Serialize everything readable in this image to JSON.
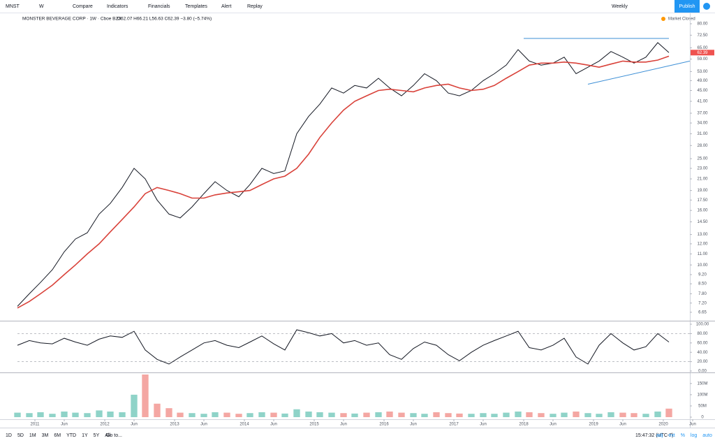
{
  "toolbar": {
    "symbol": "MNST",
    "interval": "W",
    "items": [
      "Compare",
      "Indicators",
      "Financials",
      "Templates",
      "Alert",
      "Replay"
    ],
    "range": "Weekly",
    "publish": "Publish"
  },
  "legend": {
    "title": "MONSTER BEVERAGE CORP · 1W · Cboe BZX",
    "ohlc": "O62.07 H66.21 L56.63 C62.39 −3.80 (−5.74%)",
    "status": "Market Closed"
  },
  "chart_data": [
    {
      "type": "line",
      "log": true,
      "ylim": [
        6.22,
        88.1
      ],
      "yticks": [
        {
          "value": 80,
          "label": "80.00"
        },
        {
          "value": 72.5,
          "label": "72.50"
        },
        {
          "value": 65,
          "label": "65.00"
        },
        {
          "value": 59,
          "label": "59.00"
        },
        {
          "value": 53,
          "label": "53.00"
        },
        {
          "value": 49,
          "label": "49.00"
        },
        {
          "value": 45,
          "label": "45.00"
        },
        {
          "value": 41,
          "label": "41.00"
        },
        {
          "value": 37,
          "label": "37.00"
        },
        {
          "value": 34,
          "label": "34.00"
        },
        {
          "value": 31,
          "label": "31.00"
        },
        {
          "value": 28,
          "label": "28.00"
        },
        {
          "value": 25,
          "label": "25.00"
        },
        {
          "value": 23,
          "label": "23.00"
        },
        {
          "value": 21,
          "label": "21.00"
        },
        {
          "value": 19,
          "label": "19.00"
        },
        {
          "value": 17.5,
          "label": "17.50"
        },
        {
          "value": 16,
          "label": "16.00"
        },
        {
          "value": 14.5,
          "label": "14.50"
        },
        {
          "value": 13,
          "label": "13.00"
        },
        {
          "value": 12,
          "label": "12.00"
        },
        {
          "value": 11,
          "label": "11.00"
        },
        {
          "value": 10,
          "label": "10.00"
        },
        {
          "value": 9.2,
          "label": "9.20"
        },
        {
          "value": 8.5,
          "label": "8.50"
        },
        {
          "value": 7.8,
          "label": "7.80"
        },
        {
          "value": 7.2,
          "label": "7.20"
        },
        {
          "value": 6.65,
          "label": "6.65"
        }
      ],
      "xlim": [
        2010.75,
        2020.38
      ],
      "xticks": [
        2011,
        {
          "value": 2011.42,
          "label": "Jun"
        },
        2012,
        {
          "value": 2012.42,
          "label": "Jun"
        },
        2013,
        {
          "value": 2013.42,
          "label": "Jun"
        },
        2014,
        {
          "value": 2014.42,
          "label": "Jun"
        },
        2015,
        {
          "value": 2015.42,
          "label": "Jun"
        },
        2016,
        {
          "value": 2016.42,
          "label": "Jun"
        },
        2017,
        {
          "value": 2017.42,
          "label": "Jun"
        },
        2018,
        {
          "value": 2018.42,
          "label": "Jun"
        },
        2019,
        {
          "value": 2019.42,
          "label": "Jun"
        },
        2020,
        {
          "value": 2020.42,
          "label": "Jun"
        }
      ],
      "x": [
        2010.75,
        2010.92,
        2011.08,
        2011.25,
        2011.42,
        2011.58,
        2011.75,
        2011.92,
        2012.08,
        2012.25,
        2012.42,
        2012.58,
        2012.75,
        2012.92,
        2013.08,
        2013.25,
        2013.42,
        2013.58,
        2013.75,
        2013.92,
        2014.08,
        2014.25,
        2014.42,
        2014.58,
        2014.75,
        2014.92,
        2015.08,
        2015.25,
        2015.42,
        2015.58,
        2015.75,
        2015.92,
        2016.08,
        2016.25,
        2016.42,
        2016.58,
        2016.75,
        2016.92,
        2017.08,
        2017.25,
        2017.42,
        2017.58,
        2017.75,
        2017.92,
        2018.08,
        2018.25,
        2018.42,
        2018.58,
        2018.75,
        2018.92,
        2019.08,
        2019.25,
        2019.42,
        2019.58,
        2019.75,
        2019.92,
        2020.08
      ],
      "series": [
        {
          "color": "#131722",
          "width": 1,
          "values": [
            7.0,
            7.8,
            8.6,
            9.6,
            11.2,
            12.5,
            13.2,
            15.5,
            17.0,
            19.5,
            23.0,
            21.0,
            17.5,
            15.5,
            15.0,
            16.5,
            18.5,
            20.5,
            19.0,
            18.0,
            20.0,
            23.0,
            22.0,
            22.5,
            31.0,
            36.0,
            40.0,
            46.0,
            44.0,
            47.0,
            46.0,
            50.0,
            46.0,
            43.0,
            47.0,
            52.0,
            49.0,
            44.0,
            43.0,
            45.0,
            49.0,
            52.0,
            56.0,
            64.0,
            58.0,
            56.0,
            57.0,
            60.0,
            52.0,
            55.0,
            58.0,
            63.0,
            60.0,
            57.0,
            60.0,
            68.0,
            62.39
          ]
        },
        {
          "color": "#d9423a",
          "width": 1.6,
          "values": [
            6.9,
            7.3,
            7.8,
            8.4,
            9.2,
            10.0,
            11.0,
            12.0,
            13.3,
            14.8,
            16.5,
            18.5,
            19.5,
            19.0,
            18.5,
            17.8,
            17.8,
            18.3,
            18.6,
            18.8,
            19.0,
            20.0,
            21.0,
            21.5,
            23.0,
            26.0,
            30.0,
            34.0,
            38.0,
            41.0,
            43.0,
            45.0,
            45.5,
            45.0,
            44.5,
            46.0,
            47.0,
            47.5,
            46.0,
            45.0,
            45.5,
            47.0,
            50.0,
            53.0,
            56.0,
            57.0,
            57.0,
            57.5,
            57.0,
            56.0,
            55.0,
            56.5,
            58.0,
            57.5,
            57.5,
            58.5,
            60.5
          ]
        }
      ],
      "trendlines": [
        {
          "x": [
            2018.0,
            2020.08
          ],
          "y": [
            70.5,
            70.5
          ]
        },
        {
          "x": [
            2018.92,
            2020.38
          ],
          "y": [
            47.5,
            58.0
          ]
        }
      ],
      "trend_color": "#3d8fd6"
    },
    {
      "type": "line",
      "ylim": [
        0,
        100
      ],
      "yticks": [
        {
          "value": 100,
          "label": "100.00"
        },
        {
          "value": 80,
          "label": "80.00"
        },
        {
          "value": 60,
          "label": "60.00"
        },
        {
          "value": 40,
          "label": "40.00"
        },
        {
          "value": 20,
          "label": "20.00"
        },
        {
          "value": 0,
          "label": "0.00"
        }
      ],
      "bands": [
        80,
        20
      ],
      "x": [
        2010.75,
        2010.92,
        2011.08,
        2011.25,
        2011.42,
        2011.58,
        2011.75,
        2011.92,
        2012.08,
        2012.25,
        2012.42,
        2012.58,
        2012.75,
        2012.92,
        2013.08,
        2013.25,
        2013.42,
        2013.58,
        2013.75,
        2013.92,
        2014.08,
        2014.25,
        2014.42,
        2014.58,
        2014.75,
        2014.92,
        2015.08,
        2015.25,
        2015.42,
        2015.58,
        2015.75,
        2015.92,
        2016.08,
        2016.25,
        2016.42,
        2016.58,
        2016.75,
        2016.92,
        2017.08,
        2017.25,
        2017.42,
        2017.58,
        2017.75,
        2017.92,
        2018.08,
        2018.25,
        2018.42,
        2018.58,
        2018.75,
        2018.92,
        2019.08,
        2019.25,
        2019.42,
        2019.58,
        2019.75,
        2019.92,
        2020.08
      ],
      "series": [
        {
          "color": "#131722",
          "width": 1,
          "values": [
            55,
            65,
            60,
            58,
            70,
            62,
            55,
            68,
            75,
            72,
            85,
            45,
            25,
            15,
            30,
            45,
            60,
            65,
            55,
            50,
            62,
            75,
            58,
            45,
            88,
            82,
            75,
            80,
            60,
            65,
            55,
            60,
            35,
            25,
            48,
            62,
            55,
            35,
            22,
            40,
            55,
            65,
            75,
            85,
            50,
            45,
            55,
            70,
            30,
            15,
            55,
            80,
            60,
            45,
            52,
            80,
            62
          ]
        }
      ]
    },
    {
      "type": "bar",
      "ylim": [
        0,
        190000000
      ],
      "up_color": "#8fd3c8",
      "down_color": "#f4a7a3",
      "yticks": [
        {
          "value": 150000000,
          "label": "150M"
        },
        {
          "value": 100000000,
          "label": "100M"
        },
        {
          "value": 50000000,
          "label": "50M"
        },
        0
      ],
      "x": [
        2010.75,
        2010.92,
        2011.08,
        2011.25,
        2011.42,
        2011.58,
        2011.75,
        2011.92,
        2012.08,
        2012.25,
        2012.42,
        2012.58,
        2012.75,
        2012.92,
        2013.08,
        2013.25,
        2013.42,
        2013.58,
        2013.75,
        2013.92,
        2014.08,
        2014.25,
        2014.42,
        2014.58,
        2014.75,
        2014.92,
        2015.08,
        2015.25,
        2015.42,
        2015.58,
        2015.75,
        2015.92,
        2016.08,
        2016.25,
        2016.42,
        2016.58,
        2016.75,
        2016.92,
        2017.08,
        2017.25,
        2017.42,
        2017.58,
        2017.75,
        2017.92,
        2018.08,
        2018.25,
        2018.42,
        2018.58,
        2018.75,
        2018.92,
        2019.08,
        2019.25,
        2019.42,
        2019.58,
        2019.75,
        2019.92,
        2020.08
      ],
      "values": [
        20000000,
        18000000,
        22000000,
        15000000,
        25000000,
        20000000,
        18000000,
        30000000,
        25000000,
        22000000,
        100000000,
        190000000,
        60000000,
        40000000,
        20000000,
        18000000,
        15000000,
        22000000,
        20000000,
        15000000,
        18000000,
        22000000,
        20000000,
        16000000,
        35000000,
        25000000,
        22000000,
        20000000,
        18000000,
        16000000,
        20000000,
        22000000,
        25000000,
        20000000,
        18000000,
        15000000,
        22000000,
        18000000,
        16000000,
        15000000,
        18000000,
        15000000,
        20000000,
        25000000,
        22000000,
        18000000,
        15000000,
        20000000,
        25000000,
        18000000,
        15000000,
        22000000,
        20000000,
        18000000,
        15000000,
        25000000,
        38000000
      ]
    }
  ],
  "bottom_bar": {
    "ranges": [
      "1D",
      "5D",
      "1M",
      "3M",
      "6M",
      "YTD",
      "1Y",
      "5Y",
      "All"
    ],
    "goto": "Go to...",
    "clock": "15:47:32 (UTC-7)",
    "options": [
      "adj",
      "ext",
      "%",
      "log",
      "auto"
    ]
  }
}
